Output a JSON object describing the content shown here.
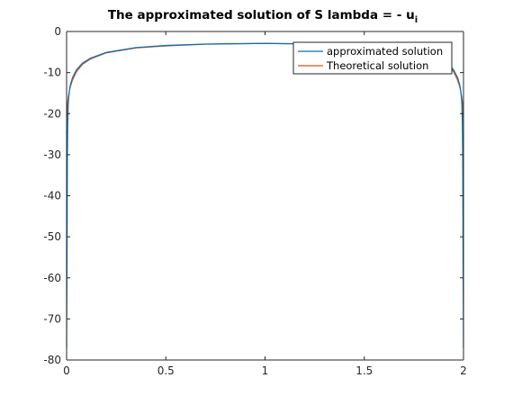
{
  "chart_data": {
    "type": "line",
    "title": "The approximated solution of S lambda = - u",
    "title_subscript": "i",
    "xlabel": "",
    "ylabel": "",
    "xlim": [
      0,
      2
    ],
    "ylim": [
      -80,
      0
    ],
    "x_ticks": [
      0,
      0.5,
      1,
      1.5,
      2
    ],
    "x_tick_labels": [
      "0",
      "0.5",
      "1",
      "1.5",
      "2"
    ],
    "y_ticks": [
      0,
      -10,
      -20,
      -30,
      -40,
      -50,
      -60,
      -70,
      -80
    ],
    "y_tick_labels": [
      "0",
      "-10",
      "-20",
      "-30",
      "-40",
      "-50",
      "-60",
      "-70",
      "-80"
    ],
    "grid": false,
    "legend_position": "top-right",
    "series": [
      {
        "name": "approximated solution",
        "color": "#0072BD",
        "x": [
          0,
          0.002,
          0.004,
          0.006,
          0.008,
          0.01,
          0.012,
          0.014,
          0.016,
          0.02,
          0.03,
          0.05,
          0.08,
          0.12,
          0.2,
          0.35,
          0.5,
          0.7,
          1.0,
          1.3,
          1.5,
          1.65,
          1.8,
          1.88,
          1.92,
          1.95,
          1.97,
          1.98,
          1.984,
          1.986,
          1.988,
          1.99,
          1.992,
          1.994,
          1.996,
          1.998,
          2
        ],
        "y": [
          -77,
          -55,
          -30,
          -22,
          -18,
          -16.5,
          -15.5,
          -14.5,
          -13.8,
          -12.8,
          -11.2,
          -9.3,
          -7.7,
          -6.5,
          -5.1,
          -3.9,
          -3.4,
          -3.05,
          -2.9,
          -3.05,
          -3.4,
          -3.9,
          -5.1,
          -6.5,
          -7.7,
          -9.3,
          -11.2,
          -12.8,
          -13.8,
          -14.5,
          -15.5,
          -16.5,
          -18,
          -22,
          -30,
          -55,
          -77
        ]
      },
      {
        "name": "Theoretical solution",
        "color": "#D95319",
        "x": [
          0,
          0.002,
          0.004,
          0.006,
          0.008,
          0.01,
          0.015,
          0.02,
          0.03,
          0.05,
          0.08,
          0.12,
          0.2,
          0.35,
          0.5,
          0.7,
          1.0,
          1.3,
          1.5,
          1.65,
          1.8,
          1.88,
          1.92,
          1.95,
          1.97,
          1.98,
          1.985,
          1.99,
          1.992,
          1.994,
          1.996,
          1.998,
          2
        ],
        "y": [
          -25,
          -20,
          -18,
          -17,
          -16.2,
          -15.6,
          -14.3,
          -13.3,
          -11.8,
          -9.8,
          -8.0,
          -6.7,
          -5.2,
          -4.0,
          -3.5,
          -3.1,
          -2.9,
          -3.1,
          -3.5,
          -4.0,
          -5.2,
          -6.7,
          -8.0,
          -9.8,
          -11.8,
          -13.3,
          -14.3,
          -15.6,
          -16.2,
          -17,
          -18,
          -20,
          -25
        ]
      }
    ]
  }
}
